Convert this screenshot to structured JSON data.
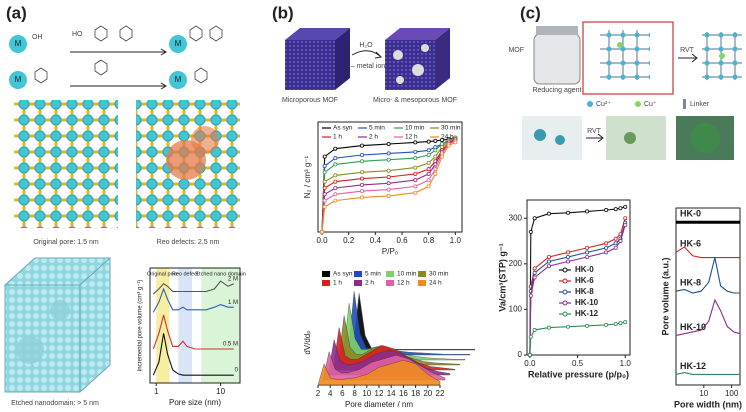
{
  "figure": {
    "panel_labels": [
      "(a)",
      "(b)",
      "(c)"
    ],
    "a": {
      "metal": "M",
      "hydroxyl": "OH",
      "hydroxyl2": "HO",
      "captions": [
        "Original pore: 1.5 nm",
        "Reo defects: 2.5 nm",
        "Etched nanodomain: > 5 nm"
      ]
    },
    "b": {
      "captions": [
        "Microporous MOF",
        "Micro- & mesoporous MOF"
      ],
      "reagent": "H₂O",
      "byproduct": "– metal ion"
    },
    "c": {
      "mof": "MOF",
      "reducing_agent": "Reducing agent",
      "process": "RVT",
      "legend": [
        "Cu²⁺",
        "Cu⁺",
        "Linker"
      ]
    }
  },
  "chart_data": [
    {
      "type": "line",
      "xlabel": "Pore size (nm)",
      "ylabel": "Incremental pore volume (cm³ g⁻¹)",
      "xscale": "log",
      "xlim": [
        0.8,
        20
      ],
      "xticks": [
        1,
        10
      ],
      "ylim": [
        0,
        4.4
      ],
      "series_labels": "end",
      "regions": [
        {
          "label": "Original pore",
          "from": 1,
          "to": 1.6,
          "color": "#f3e77a"
        },
        {
          "label": "Reo defect",
          "from": 2.2,
          "to": 3.6,
          "color": "#c9d9f2"
        },
        {
          "label": "Etched nano domain",
          "from": 5,
          "to": 20,
          "color": "#c9efc4"
        }
      ],
      "x": [
        0.9,
        1.1,
        1.3,
        1.5,
        1.8,
        2.2,
        2.6,
        3,
        4,
        5,
        6,
        8,
        10,
        13,
        16
      ],
      "series": [
        {
          "name": "2 M",
          "color": "#555555",
          "values": [
            3.4,
            3.6,
            3.8,
            3.7,
            3.5,
            3.5,
            3.5,
            3.5,
            3.5,
            3.5,
            3.5,
            3.6,
            3.9,
            3.7,
            3.8
          ]
        },
        {
          "name": "1 M",
          "color": "#2f5fb8",
          "values": [
            2.7,
            3.1,
            3.6,
            3.2,
            2.8,
            2.8,
            2.9,
            2.8,
            2.8,
            2.8,
            2.8,
            2.9,
            3.0,
            2.9,
            2.9
          ]
        },
        {
          "name": "0.5 M",
          "color": "#d03030",
          "values": [
            1.3,
            1.9,
            2.6,
            2.0,
            1.4,
            1.4,
            1.6,
            1.4,
            1.3,
            1.3,
            1.3,
            1.3,
            1.3,
            1.3,
            1.3
          ]
        },
        {
          "name": "0",
          "color": "#111111",
          "values": [
            0.3,
            0.8,
            1.9,
            1.1,
            0.5,
            0.35,
            0.3,
            0.3,
            0.3,
            0.3,
            0.3,
            0.3,
            0.3,
            0.3,
            0.3
          ]
        }
      ]
    },
    {
      "type": "line",
      "xlabel": "P/P₀",
      "ylabel": "N₂ / cm³ g⁻¹",
      "xlim": [
        -0.03,
        1.05
      ],
      "xticks": [
        {
          "value": 0,
          "label": "0.0"
        },
        {
          "value": 0.2,
          "label": "0.2"
        },
        {
          "value": 0.4,
          "label": "0.4"
        },
        {
          "value": 0.6,
          "label": "0.6"
        },
        {
          "value": 0.8,
          "label": "0.8"
        },
        {
          "value": 1,
          "label": "1.0"
        }
      ],
      "ylim": [
        0,
        700
      ],
      "legend": "top",
      "markers": true,
      "x": [
        0,
        0.02,
        0.1,
        0.3,
        0.5,
        0.7,
        0.8,
        0.85,
        0.9,
        0.95,
        1.0
      ],
      "series": [
        {
          "name": "As syn",
          "color": "#000000",
          "values": [
            0,
            480,
            530,
            550,
            560,
            570,
            575,
            580,
            585,
            590,
            600
          ]
        },
        {
          "name": "5 min",
          "color": "#1f4fbf",
          "values": [
            0,
            420,
            470,
            490,
            500,
            510,
            520,
            540,
            560,
            580,
            600
          ]
        },
        {
          "name": "10 min",
          "color": "#2e9e55",
          "values": [
            0,
            380,
            430,
            450,
            460,
            470,
            490,
            520,
            560,
            585,
            600
          ]
        },
        {
          "name": "30 min",
          "color": "#8a8a20",
          "values": [
            0,
            320,
            360,
            380,
            390,
            410,
            440,
            480,
            540,
            580,
            600
          ]
        },
        {
          "name": "1 h",
          "color": "#d62020",
          "values": [
            0,
            280,
            320,
            340,
            350,
            370,
            400,
            450,
            520,
            570,
            590
          ]
        },
        {
          "name": "2 h",
          "color": "#8e2c8e",
          "values": [
            0,
            240,
            280,
            300,
            310,
            330,
            370,
            430,
            510,
            560,
            590
          ]
        },
        {
          "name": "12 h",
          "color": "#e060a0",
          "values": [
            0,
            200,
            240,
            260,
            270,
            290,
            330,
            400,
            500,
            560,
            580
          ]
        },
        {
          "name": "24 h",
          "color": "#f08a20",
          "values": [
            0,
            160,
            200,
            220,
            230,
            250,
            290,
            370,
            480,
            550,
            570
          ]
        }
      ]
    },
    {
      "type": "area",
      "xlabel": "Pore diameter / nm",
      "ylabel": "dV/ddₚ",
      "xlim": [
        2,
        22
      ],
      "xticks": [
        2,
        4,
        6,
        8,
        10,
        12,
        14,
        16,
        18,
        20,
        22
      ],
      "ylim": [
        0,
        12
      ],
      "legend": "top",
      "x": [
        2,
        3,
        4,
        5,
        6,
        8,
        10,
        12,
        14,
        16,
        18,
        20,
        22
      ],
      "series": [
        {
          "name": "As syn",
          "color": "#000000",
          "values": [
            0,
            8,
            2,
            0.3,
            0.2,
            0.1,
            0.1,
            0.1,
            0.1,
            0.1,
            0.1,
            0.1,
            0.1
          ]
        },
        {
          "name": "5 min",
          "color": "#1f4fbf",
          "values": [
            0,
            9,
            3,
            1,
            0.8,
            0.8,
            0.6,
            0.4,
            0.3,
            0.2,
            0.1,
            0.1,
            0.1
          ]
        },
        {
          "name": "10 min",
          "color": "#7fd06a",
          "values": [
            0,
            8,
            3,
            1.5,
            1.5,
            2,
            1.5,
            0.8,
            0.5,
            0.3,
            0.2,
            0.1,
            0.1
          ]
        },
        {
          "name": "30 min",
          "color": "#8a8a20",
          "values": [
            0,
            7,
            2.5,
            1.5,
            1.5,
            2.5,
            2.5,
            1.5,
            1,
            0.5,
            0.3,
            0.2,
            0.1
          ]
        },
        {
          "name": "1 h",
          "color": "#d62020",
          "values": [
            0,
            6,
            2,
            1.5,
            1.5,
            2.5,
            3.5,
            3,
            2,
            1,
            0.5,
            0.3,
            0.1
          ]
        },
        {
          "name": "2 h",
          "color": "#8e2c8e",
          "values": [
            0,
            5,
            2,
            1.5,
            1.5,
            2,
            3,
            3.5,
            3,
            2,
            1,
            0.5,
            0.2
          ]
        },
        {
          "name": "12 h",
          "color": "#e060a0",
          "values": [
            0,
            4,
            1.5,
            1,
            1,
            1.5,
            2.5,
            3,
            3.5,
            3,
            2,
            1,
            0.3
          ]
        },
        {
          "name": "24 h",
          "color": "#f08a20",
          "values": [
            0,
            3,
            1,
            0.8,
            0.8,
            1,
            1.5,
            2.5,
            3,
            3.5,
            3,
            1.5,
            0.5
          ]
        }
      ]
    },
    {
      "type": "line",
      "xlabel": "Relative pressure (p/p₀)",
      "ylabel": "Va/cm³(STP) g⁻¹",
      "xlim": [
        -0.03,
        1.05
      ],
      "xticks": [
        {
          "value": 0,
          "label": "0.0"
        },
        {
          "value": 0.5,
          "label": "0.5"
        },
        {
          "value": 1,
          "label": "1.0"
        }
      ],
      "ylim": [
        0,
        340
      ],
      "yticks": [
        0,
        100,
        200,
        300
      ],
      "legend": "center",
      "markers": true,
      "x": [
        0,
        0.01,
        0.05,
        0.2,
        0.4,
        0.6,
        0.8,
        0.9,
        0.95,
        1.0
      ],
      "series": [
        {
          "name": "HK-0",
          "color": "#111111",
          "values": [
            0,
            270,
            300,
            310,
            312,
            315,
            318,
            320,
            322,
            325
          ]
        },
        {
          "name": "HK-6",
          "color": "#d62020",
          "values": [
            0,
            150,
            190,
            215,
            225,
            235,
            245,
            255,
            265,
            300
          ]
        },
        {
          "name": "HK-8",
          "color": "#1f4f8f",
          "values": [
            0,
            140,
            180,
            205,
            215,
            225,
            235,
            245,
            255,
            290
          ]
        },
        {
          "name": "HK-10",
          "color": "#8e2c8e",
          "values": [
            0,
            130,
            170,
            195,
            205,
            215,
            225,
            235,
            250,
            285
          ]
        },
        {
          "name": "HK-12",
          "color": "#2e8e55",
          "values": [
            0,
            40,
            55,
            60,
            62,
            64,
            66,
            68,
            70,
            72
          ]
        }
      ]
    },
    {
      "type": "line",
      "xlabel": "Pore width (nm)",
      "ylabel": "Pore volume (a.u.)",
      "xscale": "log",
      "xlim": [
        1,
        200
      ],
      "xticks": [
        10,
        100
      ],
      "ylim": [
        0,
        10
      ],
      "series_labels": "start",
      "x": [
        1,
        2,
        4,
        8,
        15,
        25,
        40,
        70,
        120,
        200
      ],
      "series": [
        {
          "name": "HK-0",
          "color": "#000000",
          "values": [
            9.2,
            9.2,
            9.2,
            9.2,
            9.2,
            9.2,
            9.2,
            9.2,
            9.2,
            9.2
          ]
        },
        {
          "name": "HK-6",
          "color": "#d62020",
          "values": [
            7.5,
            7.8,
            7.3,
            7.2,
            7.2,
            7.2,
            7.2,
            7.2,
            7.2,
            7.2
          ]
        },
        {
          "name": "HK-8",
          "color": "#1f4f8f",
          "values": [
            5.3,
            5.4,
            5.2,
            5.3,
            5.8,
            7.2,
            5.6,
            5.3,
            5.2,
            5.2
          ]
        },
        {
          "name": "HK-10",
          "color": "#8e2c8e",
          "values": [
            2.8,
            2.9,
            3,
            3.1,
            3.6,
            4.8,
            4.2,
            3.3,
            3,
            2.9
          ]
        },
        {
          "name": "HK-12",
          "color": "#2e8e55",
          "values": [
            0.6,
            0.7,
            0.6,
            0.6,
            0.6,
            0.6,
            0.6,
            0.6,
            0.6,
            0.6
          ]
        }
      ]
    }
  ]
}
